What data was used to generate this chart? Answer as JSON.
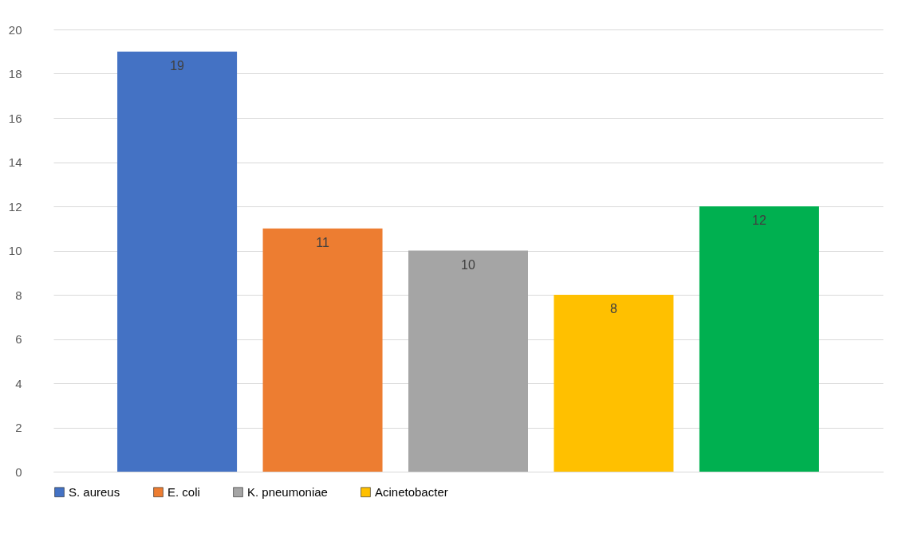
{
  "chart_data": {
    "type": "bar",
    "categories": [
      null
    ],
    "series": [
      {
        "name": "S. aureus",
        "color": "#4472c4",
        "values": [
          19
        ]
      },
      {
        "name": "E. coli",
        "color": "#ed7d31",
        "values": [
          11
        ]
      },
      {
        "name": "K. pneumoniae",
        "color": "#a5a5a5",
        "values": [
          10
        ]
      },
      {
        "name": "Acinetobacter",
        "color": "#ffc000",
        "values": [
          8
        ]
      },
      {
        "color": "#00b050",
        "values": [
          12
        ]
      }
    ],
    "ylim": [
      0,
      20
    ],
    "yticks": [
      0,
      2,
      4,
      6,
      8,
      10,
      12,
      14,
      16,
      18,
      20
    ],
    "grid": "y",
    "legend": "bottom",
    "data_labels": true
  }
}
